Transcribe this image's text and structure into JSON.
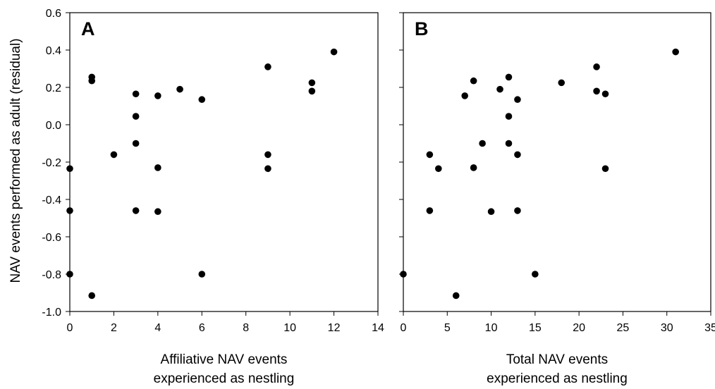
{
  "chart_data": [
    {
      "type": "scatter",
      "panel_label": "A",
      "xlabel_lines": [
        "Affiliative NAV events",
        "experienced as nestling"
      ],
      "ylabel": "NAV events performed as adult (residual)",
      "xlim": [
        0,
        14
      ],
      "ylim": [
        -1.0,
        0.6
      ],
      "x_ticks": [
        "0",
        "2",
        "4",
        "6",
        "8",
        "10",
        "12",
        "14"
      ],
      "y_ticks": [
        "-1.0",
        "-0.8",
        "-0.6",
        "-0.4",
        "-0.2",
        "0.0",
        "0.2",
        "0.4",
        "0.6"
      ],
      "grid": false,
      "points": [
        {
          "x": 0,
          "y": -0.235
        },
        {
          "x": 0,
          "y": -0.46
        },
        {
          "x": 0,
          "y": -0.8
        },
        {
          "x": 1,
          "y": 0.255
        },
        {
          "x": 1,
          "y": 0.235
        },
        {
          "x": 1,
          "y": -0.915
        },
        {
          "x": 2,
          "y": -0.16
        },
        {
          "x": 3,
          "y": 0.165
        },
        {
          "x": 3,
          "y": 0.045
        },
        {
          "x": 3,
          "y": -0.1
        },
        {
          "x": 3,
          "y": -0.46
        },
        {
          "x": 4,
          "y": 0.155
        },
        {
          "x": 4,
          "y": -0.23
        },
        {
          "x": 4,
          "y": -0.465
        },
        {
          "x": 5,
          "y": 0.19
        },
        {
          "x": 6,
          "y": 0.135
        },
        {
          "x": 6,
          "y": -0.8
        },
        {
          "x": 9,
          "y": 0.31
        },
        {
          "x": 9,
          "y": -0.16
        },
        {
          "x": 9,
          "y": -0.235
        },
        {
          "x": 11,
          "y": 0.225
        },
        {
          "x": 11,
          "y": 0.18
        },
        {
          "x": 12,
          "y": 0.39
        }
      ]
    },
    {
      "type": "scatter",
      "panel_label": "B",
      "xlabel_lines": [
        "Total NAV events",
        "experienced as nestling"
      ],
      "xlim": [
        0,
        35
      ],
      "ylim": [
        -1.0,
        0.6
      ],
      "x_ticks": [
        "0",
        "5",
        "10",
        "15",
        "20",
        "25",
        "30",
        "35"
      ],
      "grid": false,
      "points": [
        {
          "x": 0,
          "y": -0.8
        },
        {
          "x": 3,
          "y": -0.16
        },
        {
          "x": 3,
          "y": -0.46
        },
        {
          "x": 4,
          "y": -0.235
        },
        {
          "x": 6,
          "y": -0.915
        },
        {
          "x": 7,
          "y": 0.155
        },
        {
          "x": 8,
          "y": 0.235
        },
        {
          "x": 8,
          "y": -0.23
        },
        {
          "x": 9,
          "y": -0.1
        },
        {
          "x": 10,
          "y": -0.465
        },
        {
          "x": 11,
          "y": 0.19
        },
        {
          "x": 12,
          "y": 0.255
        },
        {
          "x": 12,
          "y": 0.045
        },
        {
          "x": 12,
          "y": -0.1
        },
        {
          "x": 13,
          "y": 0.135
        },
        {
          "x": 13,
          "y": -0.16
        },
        {
          "x": 13,
          "y": -0.46
        },
        {
          "x": 15,
          "y": -0.8
        },
        {
          "x": 18,
          "y": 0.225
        },
        {
          "x": 22,
          "y": 0.31
        },
        {
          "x": 22,
          "y": 0.18
        },
        {
          "x": 23,
          "y": 0.165
        },
        {
          "x": 23,
          "y": -0.235
        },
        {
          "x": 31,
          "y": 0.39
        }
      ]
    }
  ]
}
